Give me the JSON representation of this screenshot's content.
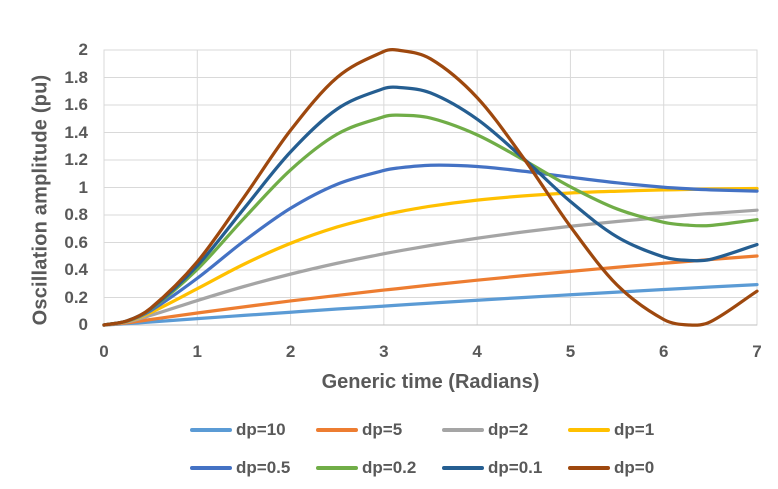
{
  "page": {
    "background": "#ffffff",
    "text_color": "#595959",
    "grid_color": "#D9D9D9",
    "axis_color": "#BFBFBF"
  },
  "chart_data": {
    "type": "line",
    "title": "",
    "xlabel": "Generic time (Radians)",
    "ylabel": "Oscillation amplitude (pu)",
    "xlim": [
      0,
      7
    ],
    "ylim": [
      0,
      2
    ],
    "xticks": [
      "0",
      "1",
      "2",
      "3",
      "4",
      "5",
      "6",
      "7"
    ],
    "yticks": [
      "0",
      "0.2",
      "0.4",
      "0.6",
      "0.8",
      "1",
      "1.2",
      "1.4",
      "1.6",
      "1.8",
      "2"
    ],
    "grid": true,
    "legend_position": "bottom",
    "legend_rows": 2,
    "x": [
      0,
      0.25,
      0.5,
      1,
      1.5,
      2,
      2.5,
      3,
      3.14,
      3.5,
      4,
      4.5,
      5,
      5.5,
      6,
      6.28,
      6.5,
      7
    ],
    "series": [
      {
        "name": "dp=10",
        "dp": 10,
        "color": "#5B9BD5",
        "values": [
          0,
          0.01,
          0.022,
          0.046,
          0.07,
          0.093,
          0.116,
          0.137,
          0.144,
          0.159,
          0.18,
          0.2,
          0.22,
          0.239,
          0.258,
          0.268,
          0.276,
          0.294
        ]
      },
      {
        "name": "dp=5",
        "dp": 5,
        "color": "#ED7D31",
        "values": [
          0,
          0.016,
          0.04,
          0.087,
          0.132,
          0.175,
          0.215,
          0.254,
          0.264,
          0.291,
          0.326,
          0.359,
          0.39,
          0.42,
          0.449,
          0.464,
          0.476,
          0.502
        ]
      },
      {
        "name": "dp=2",
        "dp": 2,
        "color": "#A5A5A5",
        "values": [
          0,
          0.023,
          0.07,
          0.178,
          0.28,
          0.37,
          0.449,
          0.518,
          0.536,
          0.578,
          0.631,
          0.677,
          0.718,
          0.753,
          0.784,
          0.8,
          0.811,
          0.835
        ]
      },
      {
        "name": "dp=1",
        "dp": 1,
        "color": "#FFC000",
        "values": [
          0,
          0.027,
          0.09,
          0.264,
          0.442,
          0.594,
          0.713,
          0.801,
          0.821,
          0.864,
          0.908,
          0.939,
          0.96,
          0.973,
          0.983,
          0.986,
          0.989,
          0.993
        ]
      },
      {
        "name": "dp=0.5",
        "dp": 0.5,
        "color": "#4472C4",
        "values": [
          0,
          0.029,
          0.104,
          0.34,
          0.61,
          0.849,
          1.024,
          1.124,
          1.141,
          1.162,
          1.153,
          1.118,
          1.075,
          1.034,
          1.002,
          0.99,
          0.983,
          0.974
        ]
      },
      {
        "name": "dp=0.2",
        "dp": 0.2,
        "color": "#70AD47",
        "values": [
          0,
          0.03,
          0.115,
          0.405,
          0.775,
          1.128,
          1.388,
          1.515,
          1.526,
          1.505,
          1.383,
          1.2,
          1.005,
          0.844,
          0.747,
          0.725,
          0.724,
          0.766
        ]
      },
      {
        "name": "dp=0.1",
        "dp": 0.1,
        "color": "#255E91",
        "values": [
          0,
          0.031,
          0.118,
          0.431,
          0.846,
          1.259,
          1.571,
          1.72,
          1.729,
          1.688,
          1.497,
          1.209,
          0.898,
          0.641,
          0.495,
          0.469,
          0.477,
          0.585
        ]
      },
      {
        "name": "dp=0",
        "dp": 0,
        "color": "#9E480E",
        "values": [
          0,
          0.031,
          0.122,
          0.46,
          0.929,
          1.416,
          1.801,
          1.99,
          2.0,
          1.936,
          1.654,
          1.211,
          0.716,
          0.291,
          0.04,
          0.0,
          0.023,
          0.246
        ]
      }
    ]
  }
}
